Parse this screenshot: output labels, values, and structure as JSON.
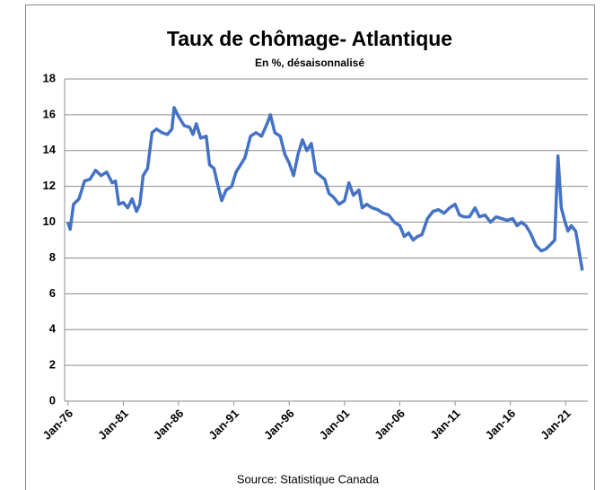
{
  "chart_data": {
    "type": "line",
    "title": "Taux de chômage- Atlantique",
    "subtitle": "En %, désaisonnalisé",
    "source": "Source: Statistique Canada",
    "x": [
      1976.0,
      1976.2,
      1976.5,
      1977.0,
      1977.5,
      1978.0,
      1978.5,
      1979.0,
      1979.5,
      1980.0,
      1980.3,
      1980.6,
      1981.0,
      1981.4,
      1981.8,
      1982.2,
      1982.5,
      1982.8,
      1983.2,
      1983.6,
      1984.0,
      1984.5,
      1985.0,
      1985.4,
      1985.6,
      1986.0,
      1986.5,
      1987.0,
      1987.3,
      1987.6,
      1988.0,
      1988.5,
      1988.8,
      1989.2,
      1989.5,
      1989.9,
      1990.3,
      1990.8,
      1991.2,
      1991.6,
      1992.0,
      1992.5,
      1993.0,
      1993.5,
      1994.0,
      1994.3,
      1994.7,
      1995.2,
      1995.6,
      1996.0,
      1996.4,
      1996.8,
      1997.2,
      1997.6,
      1998.0,
      1998.4,
      1998.8,
      1999.2,
      1999.6,
      2000.0,
      2000.5,
      2001.0,
      2001.4,
      2001.8,
      2002.3,
      2002.6,
      2003.0,
      2003.5,
      2004.0,
      2004.5,
      2005.0,
      2005.5,
      2006.0,
      2006.4,
      2006.8,
      2007.2,
      2007.6,
      2008.0,
      2008.5,
      2009.0,
      2009.5,
      2010.0,
      2010.5,
      2011.0,
      2011.4,
      2011.8,
      2012.3,
      2012.8,
      2013.2,
      2013.7,
      2014.2,
      2014.7,
      2015.2,
      2015.7,
      2016.2,
      2016.6,
      2017.0,
      2017.4,
      2017.8,
      2018.3,
      2018.8,
      2019.2,
      2019.7,
      2020.0,
      2020.3,
      2020.6,
      2020.9,
      2021.2,
      2021.5,
      2021.9,
      2022.1,
      2022.3,
      2022.5
    ],
    "series": [
      {
        "name": "Taux de chômage",
        "color": "#4472c4",
        "values": [
          10.0,
          9.6,
          11.0,
          11.3,
          12.3,
          12.4,
          12.9,
          12.6,
          12.8,
          12.2,
          12.3,
          11.0,
          11.1,
          10.8,
          11.3,
          10.6,
          11.0,
          12.6,
          13.0,
          15.0,
          15.2,
          15.0,
          14.9,
          15.2,
          16.4,
          15.9,
          15.4,
          15.3,
          14.9,
          15.5,
          14.7,
          14.8,
          13.2,
          13.0,
          12.2,
          11.2,
          11.8,
          12.0,
          12.8,
          13.2,
          13.6,
          14.8,
          15.0,
          14.8,
          15.5,
          16.0,
          15.0,
          14.8,
          13.8,
          13.3,
          12.6,
          13.8,
          14.6,
          14.0,
          14.4,
          12.8,
          12.6,
          12.4,
          11.6,
          11.4,
          11.0,
          11.2,
          12.2,
          11.5,
          11.8,
          10.8,
          11.0,
          10.8,
          10.7,
          10.5,
          10.4,
          10.0,
          9.8,
          9.2,
          9.4,
          9.0,
          9.2,
          9.3,
          10.2,
          10.6,
          10.7,
          10.5,
          10.8,
          11.0,
          10.4,
          10.3,
          10.3,
          10.8,
          10.3,
          10.4,
          10.0,
          10.3,
          10.2,
          10.1,
          10.2,
          9.8,
          10.0,
          9.8,
          9.4,
          8.7,
          8.4,
          8.5,
          8.8,
          9.0,
          13.7,
          10.8,
          10.1,
          9.5,
          9.8,
          9.5,
          8.8,
          8.0,
          7.3
        ]
      }
    ],
    "xlim": [
      1975.7,
      2023
    ],
    "xticks": [
      {
        "value": 1976,
        "label": "Jan-76"
      },
      {
        "value": 1981,
        "label": "Jan-81"
      },
      {
        "value": 1986,
        "label": "Jan-86"
      },
      {
        "value": 1991,
        "label": "Jan-91"
      },
      {
        "value": 1996,
        "label": "Jan-96"
      },
      {
        "value": 2001,
        "label": "Jan-01"
      },
      {
        "value": 2006,
        "label": "Jan-06"
      },
      {
        "value": 2011,
        "label": "Jan-11"
      },
      {
        "value": 2016,
        "label": "Jan-16"
      },
      {
        "value": 2021,
        "label": "Jan-21"
      }
    ],
    "ylim": [
      0,
      18
    ],
    "yticks": [
      0,
      2,
      4,
      6,
      8,
      10,
      12,
      14,
      16,
      18
    ],
    "grid": true
  }
}
